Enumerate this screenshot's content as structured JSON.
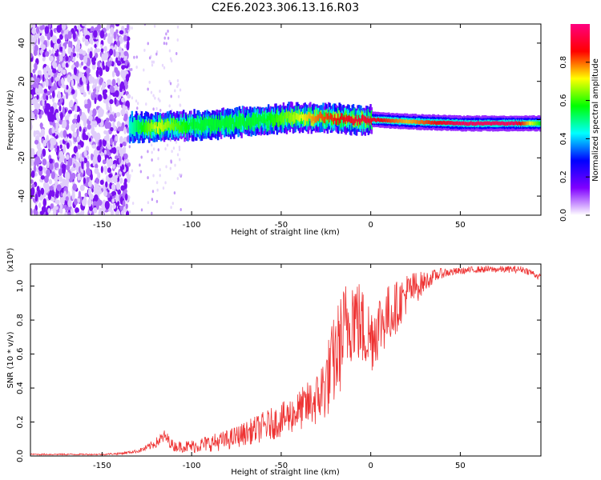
{
  "title": "C2E6.2023.306.13.16.R03",
  "chart_data": [
    {
      "type": "heatmap",
      "xlabel": "Height of straight line (km)",
      "ylabel": "Frequency (Hz)",
      "xlim": [
        -190,
        95
      ],
      "ylim": [
        -50,
        50
      ],
      "x_ticks": [
        -150,
        -100,
        -50,
        0,
        50
      ],
      "y_ticks": [
        -40,
        -20,
        0,
        20,
        40
      ],
      "colorbar": {
        "label": "Normalized spectral amplitude",
        "range": [
          0,
          1
        ],
        "ticks": [
          "0.0",
          "0.2",
          "0.4",
          "0.6",
          "0.8"
        ],
        "colors": [
          "#ffffff",
          "#8000ff",
          "#0000ff",
          "#00ffff",
          "#00ff00",
          "#ffff00",
          "#ff0000",
          "#ff0080"
        ]
      },
      "noise_region_x": [
        -190,
        -135
      ],
      "ridge": {
        "x": [
          -135,
          -120,
          -100,
          -80,
          -60,
          -45,
          -30,
          -10,
          0,
          20,
          50,
          80,
          95
        ],
        "frequency": [
          -4,
          -4,
          -3,
          -2,
          0,
          1,
          1,
          0,
          0,
          -1,
          -2,
          -2,
          -2
        ],
        "peak_amplitude": [
          0.45,
          0.7,
          0.55,
          0.55,
          0.55,
          0.65,
          0.8,
          0.9,
          0.9,
          0.75,
          0.95,
          0.95,
          0.55
        ]
      }
    },
    {
      "type": "line",
      "xlabel": "Height of straight line (km)",
      "ylabel": "SNR (10 * v/v)",
      "y_multiplier_label": "(x10⁴)",
      "xlim": [
        -190,
        95
      ],
      "ylim": [
        0,
        1.13
      ],
      "x_ticks": [
        -150,
        -100,
        -50,
        0,
        50
      ],
      "y_ticks": [
        "0.0",
        "0.2",
        "0.4",
        "0.6",
        "0.8",
        "1.0"
      ],
      "series": [
        {
          "color": "#ee3333",
          "x": [
            -190,
            -170,
            -150,
            -140,
            -130,
            -125,
            -120,
            -115,
            -110,
            -100,
            -90,
            -80,
            -70,
            -60,
            -50,
            -40,
            -30,
            -25,
            -20,
            -15,
            -10,
            -5,
            0,
            5,
            10,
            15,
            20,
            25,
            30,
            35,
            40,
            50,
            60,
            70,
            80,
            85,
            90,
            95
          ],
          "values": [
            0.01,
            0.01,
            0.01,
            0.015,
            0.03,
            0.05,
            0.08,
            0.12,
            0.06,
            0.06,
            0.08,
            0.1,
            0.14,
            0.18,
            0.22,
            0.28,
            0.35,
            0.45,
            0.6,
            0.75,
            0.88,
            0.78,
            0.72,
            0.8,
            0.85,
            0.9,
            0.97,
            1.0,
            1.03,
            1.06,
            1.08,
            1.09,
            1.1,
            1.1,
            1.1,
            1.1,
            1.08,
            1.05
          ],
          "noise": [
            0.004,
            0.004,
            0.004,
            0.006,
            0.01,
            0.02,
            0.03,
            0.04,
            0.03,
            0.04,
            0.05,
            0.06,
            0.07,
            0.09,
            0.1,
            0.12,
            0.16,
            0.22,
            0.28,
            0.3,
            0.28,
            0.25,
            0.22,
            0.2,
            0.18,
            0.15,
            0.12,
            0.1,
            0.06,
            0.04,
            0.03,
            0.02,
            0.02,
            0.02,
            0.02,
            0.02,
            0.02,
            0.02
          ]
        }
      ]
    }
  ]
}
